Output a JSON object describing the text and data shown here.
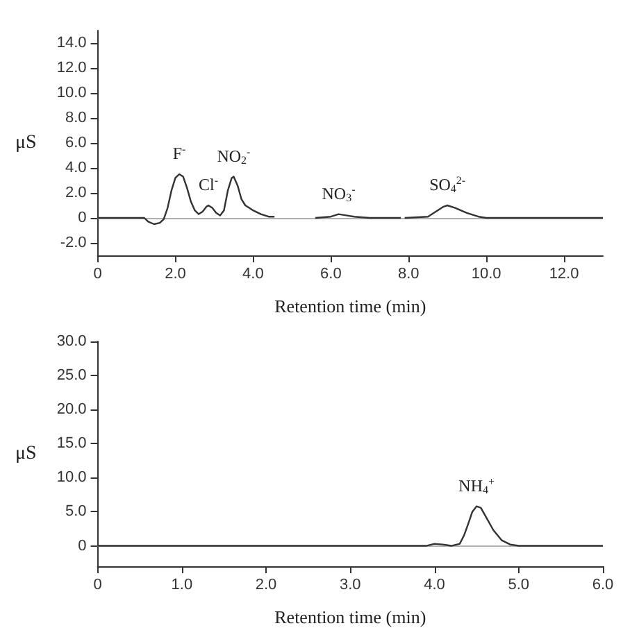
{
  "chart_data": [
    {
      "type": "line",
      "xlabel": "Retention time (min)",
      "ylabel": "μS",
      "xlim": [
        0,
        13
      ],
      "ylim": [
        -3,
        15
      ],
      "xticks": [
        0,
        {
          "value": 2,
          "label": "2.0"
        },
        {
          "value": 4,
          "label": "4.0"
        },
        {
          "value": 6,
          "label": "6.0"
        },
        {
          "value": 8,
          "label": "8.0"
        },
        {
          "value": 10,
          "label": "10.0"
        },
        {
          "value": 12,
          "label": "12.0"
        }
      ],
      "yticks": [
        {
          "value": -2,
          "label": "-2.0"
        },
        0,
        {
          "value": 2,
          "label": "2.0"
        },
        {
          "value": 4,
          "label": "4.0"
        },
        {
          "value": 6,
          "label": "6.0"
        },
        {
          "value": 8,
          "label": "8.0"
        },
        {
          "value": 10,
          "label": "10.0"
        },
        {
          "value": 12,
          "label": "12.0"
        },
        {
          "value": 14,
          "label": "14.0"
        }
      ],
      "grid": false,
      "marker": "none",
      "line_style": "solid",
      "ref_lines": [
        {
          "axis": "y",
          "value": 0,
          "color": "#b0b0b0"
        }
      ],
      "annotations": [
        {
          "text": "F$^{-}$",
          "x": 2.1,
          "y": 3.5
        },
        {
          "text": "Cl$^{-}$",
          "x": 2.85,
          "y": 1.0
        },
        {
          "text": "NO$_{2}$$^{-}$",
          "x": 3.5,
          "y": 3.3
        },
        {
          "text": "NO$_{3}$$^{-}$",
          "x": 6.2,
          "y": 0.3
        },
        {
          "text": "SO$_{4}$$^{2-}$",
          "x": 9.0,
          "y": 1.0
        }
      ],
      "series": [
        {
          "color": "#333333",
          "x": [
            0,
            1.2,
            1.3,
            1.45,
            1.6,
            1.7,
            1.8,
            1.9,
            2.0,
            2.1,
            2.2,
            2.3,
            2.4,
            2.5,
            2.6,
            2.7,
            2.8,
            2.85,
            2.95,
            3.05,
            3.15,
            3.25,
            3.35,
            3.45,
            3.5,
            3.6,
            3.7,
            3.8,
            3.9,
            4.0,
            4.2,
            4.4,
            4.55,
            5.0,
            5.6,
            6.0,
            6.2,
            6.4,
            6.6,
            7.0,
            7.8,
            7.85,
            7.9,
            8.5,
            8.7,
            8.9,
            9.0,
            9.2,
            9.5,
            9.8,
            10.0,
            13.0
          ],
          "values": [
            0,
            0,
            -0.3,
            -0.5,
            -0.4,
            -0.1,
            0.8,
            2.2,
            3.2,
            3.5,
            3.3,
            2.4,
            1.3,
            0.6,
            0.3,
            0.5,
            0.9,
            1.0,
            0.8,
            0.4,
            0.2,
            0.6,
            2.2,
            3.2,
            3.3,
            2.6,
            1.5,
            1.0,
            0.8,
            0.6,
            0.3,
            0.1,
            0.1,
            null,
            0,
            0.1,
            0.3,
            0.2,
            0.1,
            0,
            0,
            null,
            0,
            0.1,
            0.5,
            0.9,
            1.0,
            0.8,
            0.4,
            0.1,
            0,
            0
          ]
        }
      ]
    },
    {
      "type": "line",
      "xlabel": "Retention time (min)",
      "ylabel": "μS",
      "xlim": [
        0,
        6
      ],
      "ylim": [
        -3,
        30
      ],
      "xticks": [
        0,
        {
          "value": 1,
          "label": "1.0"
        },
        {
          "value": 2,
          "label": "2.0"
        },
        {
          "value": 3,
          "label": "3.0"
        },
        {
          "value": 4,
          "label": "4.0"
        },
        {
          "value": 5,
          "label": "5.0"
        },
        {
          "value": 6,
          "label": "6.0"
        }
      ],
      "yticks": [
        0,
        {
          "value": 5,
          "label": "5.0"
        },
        {
          "value": 10,
          "label": "10.0"
        },
        {
          "value": 15,
          "label": "15.0"
        },
        {
          "value": 20,
          "label": "20.0"
        },
        {
          "value": 25,
          "label": "25.0"
        },
        {
          "value": 30,
          "label": "30.0"
        }
      ],
      "grid": false,
      "marker": "none",
      "line_style": "solid",
      "ref_lines": [
        {
          "axis": "y",
          "value": 0,
          "color": "#b0b0b0"
        }
      ],
      "annotations": [
        {
          "text": "NH$_{4}$$^{+}$",
          "x": 4.5,
          "y": 5.8
        }
      ],
      "series": [
        {
          "color": "#333333",
          "x": [
            0,
            3.9,
            4.0,
            4.1,
            4.2,
            4.3,
            4.35,
            4.4,
            4.45,
            4.5,
            4.55,
            4.6,
            4.7,
            4.8,
            4.9,
            5.0,
            6.0
          ],
          "values": [
            0,
            0,
            0.3,
            0.2,
            0,
            0.3,
            1.5,
            3.2,
            5.0,
            5.8,
            5.6,
            4.5,
            2.3,
            0.8,
            0.2,
            0,
            0
          ]
        }
      ]
    }
  ]
}
